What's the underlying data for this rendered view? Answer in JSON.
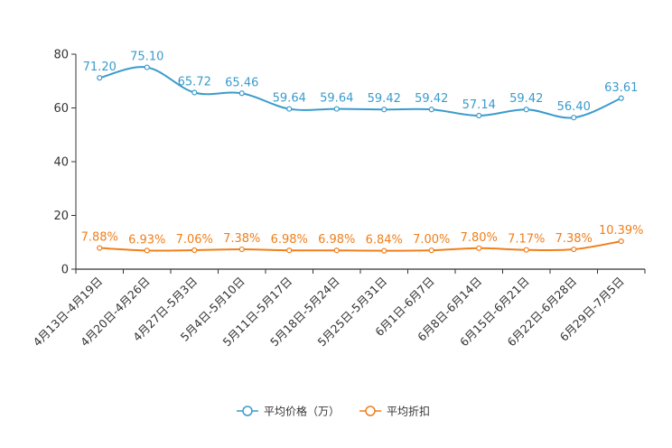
{
  "chart_data": {
    "type": "line",
    "categories": [
      "4月13日-4月19日",
      "4月20日-4月26日",
      "4月27日-5月3日",
      "5月4日-5月10日",
      "5月11日-5月17日",
      "5月18日-5月24日",
      "5月25日-5月31日",
      "6月1日-6月7日",
      "6月8日-6月14日",
      "6月15日-6月21日",
      "6月22日-6月28日",
      "6月29日-7月5日"
    ],
    "ylim": [
      0,
      80
    ],
    "yticks": [
      0,
      20,
      40,
      60,
      80
    ],
    "series": [
      {
        "name": "平均价格（万）",
        "color": "#3a9bcc",
        "values": [
          71.2,
          75.1,
          65.72,
          65.46,
          59.64,
          59.64,
          59.42,
          59.42,
          57.14,
          59.42,
          56.4,
          63.61
        ],
        "labels": [
          "71.20",
          "75.10",
          "65.72",
          "65.46",
          "59.64",
          "59.64",
          "59.42",
          "59.42",
          "57.14",
          "59.42",
          "56.40",
          "63.61"
        ]
      },
      {
        "name": "平均折扣",
        "color": "#f07f1b",
        "values": [
          7.88,
          6.93,
          7.06,
          7.38,
          6.98,
          6.98,
          6.84,
          7.0,
          7.8,
          7.17,
          7.38,
          10.39
        ],
        "labels": [
          "7.88%",
          "6.93%",
          "7.06%",
          "7.38%",
          "6.98%",
          "6.98%",
          "6.84%",
          "7.00%",
          "7.80%",
          "7.17%",
          "7.38%",
          "10.39%"
        ]
      }
    ]
  }
}
